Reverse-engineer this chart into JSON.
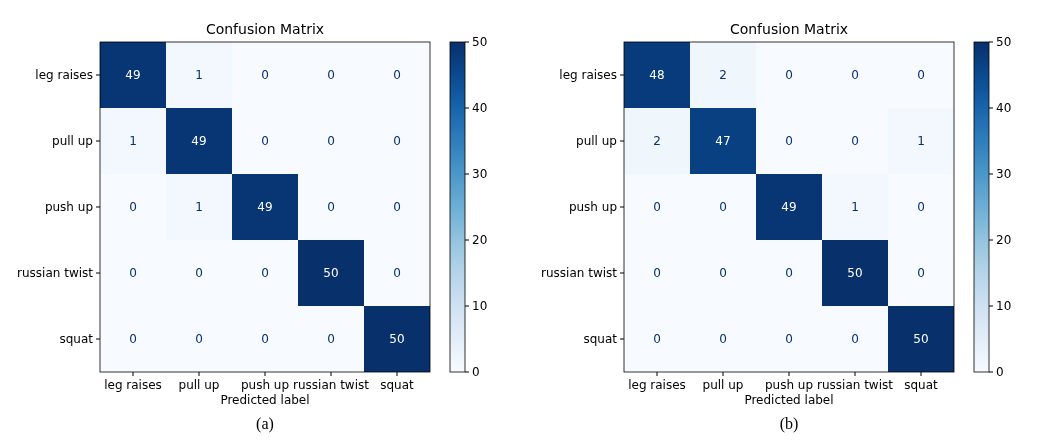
{
  "chart_data": [
    {
      "type": "heatmap",
      "title": "Confusion Matrix",
      "xlabel": "Predicted label",
      "categories": [
        "leg raises",
        "pull up",
        "push up",
        "russian twist",
        "squat"
      ],
      "y_categories": [
        "leg raises",
        "pull up",
        "push up",
        "russian twist",
        "squat"
      ],
      "cells": [
        [
          49,
          1,
          0,
          0,
          0
        ],
        [
          1,
          49,
          0,
          0,
          0
        ],
        [
          0,
          1,
          49,
          0,
          0
        ],
        [
          0,
          0,
          0,
          50,
          0
        ],
        [
          0,
          0,
          0,
          0,
          50
        ]
      ],
      "clim": [
        0,
        50
      ],
      "cticks": [
        0,
        10,
        20,
        30,
        40,
        50
      ],
      "data_labels": true,
      "annotations": [
        "(a)"
      ]
    },
    {
      "type": "heatmap",
      "title": "Confusion Matrix",
      "xlabel": "Predicted label",
      "categories": [
        "leg raises",
        "pull up",
        "push up",
        "russian twist",
        "squat"
      ],
      "y_categories": [
        "leg raises",
        "pull up",
        "push up",
        "russian twist",
        "squat"
      ],
      "cells": [
        [
          48,
          2,
          0,
          0,
          0
        ],
        [
          2,
          47,
          0,
          0,
          1
        ],
        [
          0,
          0,
          49,
          1,
          0
        ],
        [
          0,
          0,
          0,
          50,
          0
        ],
        [
          0,
          0,
          0,
          0,
          50
        ]
      ],
      "clim": [
        0,
        50
      ],
      "cticks": [
        0,
        10,
        20,
        30,
        40,
        50
      ],
      "data_labels": true,
      "annotations": [
        "(b)"
      ]
    }
  ]
}
